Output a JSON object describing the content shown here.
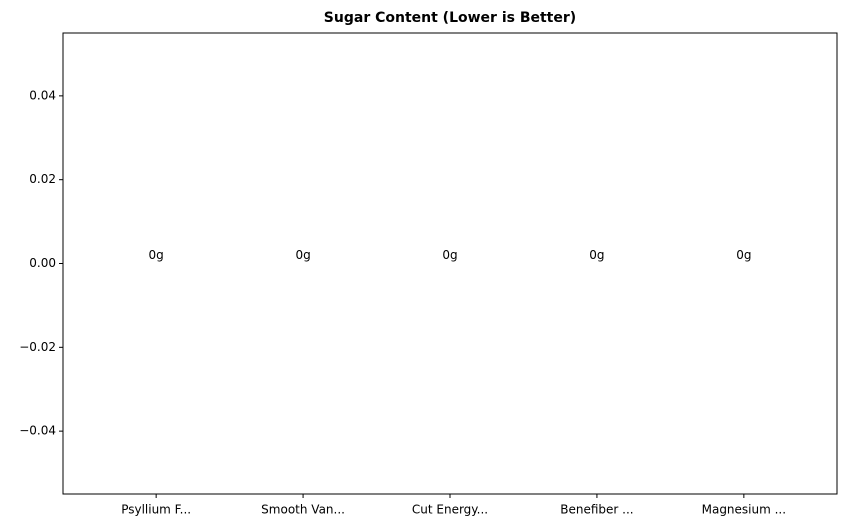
{
  "chart_data": {
    "type": "bar",
    "title": "Sugar Content (Lower is Better)",
    "categories": [
      "Psyllium F...",
      "Smooth Van...",
      "Cut Energy...",
      "Benefiber ...",
      "Magnesium ..."
    ],
    "values": [
      0,
      0,
      0,
      0,
      0
    ],
    "value_labels": [
      "0g",
      "0g",
      "0g",
      "0g",
      "0g"
    ],
    "color": "#1f77b4",
    "ylim": [
      -0.055,
      0.055
    ],
    "yticks": [
      {
        "value": -0.04,
        "label": "−0.04"
      },
      {
        "value": -0.02,
        "label": "−0.02"
      },
      {
        "value": 0,
        "label": "0.00"
      },
      0.02,
      0.04
    ],
    "grid": false
  }
}
